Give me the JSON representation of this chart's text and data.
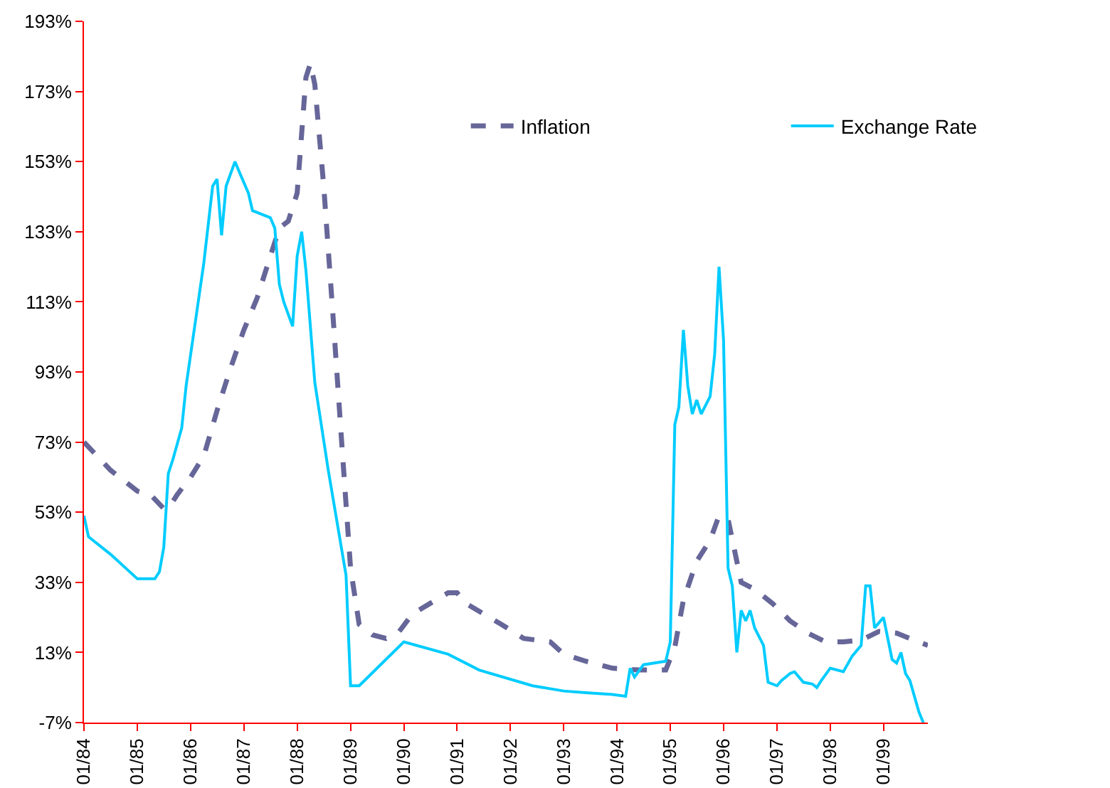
{
  "chart_data": {
    "type": "line",
    "legend": "top right",
    "grid": false,
    "ylim": [
      -7,
      193
    ],
    "yticks": [
      {
        "value": -7,
        "label": "-7%"
      },
      {
        "value": 13,
        "label": "13%"
      },
      {
        "value": 33,
        "label": "33%"
      },
      {
        "value": 53,
        "label": "53%"
      },
      {
        "value": 73,
        "label": "73%"
      },
      {
        "value": 93,
        "label": "93%"
      },
      {
        "value": 113,
        "label": "113%"
      },
      {
        "value": 133,
        "label": "133%"
      },
      {
        "value": 153,
        "label": "153%"
      },
      {
        "value": 173,
        "label": "173%"
      },
      {
        "value": 193,
        "label": "193%"
      }
    ],
    "xlim": [
      "1984-01",
      "1999-11"
    ],
    "xticks": [
      {
        "value": "1984-01",
        "label": "01/84"
      },
      {
        "value": "1985-01",
        "label": "01/85"
      },
      {
        "value": "1986-01",
        "label": "01/86"
      },
      {
        "value": "1987-01",
        "label": "01/87"
      },
      {
        "value": "1988-01",
        "label": "01/88"
      },
      {
        "value": "1989-01",
        "label": "01/89"
      },
      {
        "value": "1990-01",
        "label": "01/90"
      },
      {
        "value": "1991-01",
        "label": "01/91"
      },
      {
        "value": "1992-01",
        "label": "01/92"
      },
      {
        "value": "1993-01",
        "label": "01/93"
      },
      {
        "value": "1994-01",
        "label": "01/94"
      },
      {
        "value": "1995-01",
        "label": "01/95"
      },
      {
        "value": "1996-01",
        "label": "01/96"
      },
      {
        "value": "1997-01",
        "label": "01/97"
      },
      {
        "value": "1998-01",
        "label": "01/98"
      },
      {
        "value": "1999-01",
        "label": "01/99"
      }
    ],
    "series": [
      {
        "name": "Inflation",
        "color": "#666699",
        "line_style": "dashed",
        "x": [
          "1984-01",
          "1984-04",
          "1984-07",
          "1984-10",
          "1985-01",
          "1985-04",
          "1985-07",
          "1985-08",
          "1985-10",
          "1986-01",
          "1986-04",
          "1986-07",
          "1986-10",
          "1987-01",
          "1987-04",
          "1987-07",
          "1987-09",
          "1987-11",
          "1988-01",
          "1988-03",
          "1988-04",
          "1988-05",
          "1988-07",
          "1988-09",
          "1988-11",
          "1989-01",
          "1989-03",
          "1989-06",
          "1989-09",
          "1989-12",
          "1990-03",
          "1990-07",
          "1990-11",
          "1991-01",
          "1991-03",
          "1991-07",
          "1991-11",
          "1992-04",
          "1992-10",
          "1993-01",
          "1993-06",
          "1993-12",
          "1994-06",
          "1994-12",
          "1995-02",
          "1995-04",
          "1995-07",
          "1995-10",
          "1995-12",
          "1996-02",
          "1996-05",
          "1996-08",
          "1996-12",
          "1997-04",
          "1997-08",
          "1997-12",
          "1998-04",
          "1998-08",
          "1998-12",
          "1999-04",
          "1999-08",
          "1999-11"
        ],
        "values": [
          73,
          69,
          65,
          62,
          59,
          58,
          54,
          54,
          58,
          63,
          69,
          82,
          94,
          105,
          114,
          126,
          134,
          136,
          144,
          177,
          181,
          175,
          146,
          110,
          73,
          37,
          21,
          18,
          17,
          19,
          24,
          27,
          30,
          30,
          27,
          24,
          21,
          17,
          16,
          12.5,
          10.5,
          8.5,
          8,
          8,
          14.5,
          28,
          39,
          45,
          52,
          51,
          33,
          31,
          27,
          22,
          18.5,
          16,
          16,
          16.5,
          19,
          18.5,
          16.5,
          15
        ]
      },
      {
        "name": "Exchange Rate",
        "color": "#00ccff",
        "line_style": "solid",
        "x": [
          "1984-01",
          "1984-02",
          "1984-07",
          "1985-01",
          "1985-05",
          "1985-06",
          "1985-07",
          "1985-08",
          "1985-09",
          "1985-11",
          "1985-12",
          "1986-04",
          "1986-06",
          "1986-07",
          "1986-08",
          "1986-09",
          "1986-11",
          "1986-12",
          "1987-02",
          "1987-03",
          "1987-05",
          "1987-07",
          "1987-08",
          "1987-09",
          "1987-10",
          "1987-12",
          "1988-01",
          "1988-02",
          "1988-03",
          "1988-05",
          "1988-08",
          "1988-12",
          "1989-01",
          "1989-03",
          "1990-01",
          "1990-11",
          "1991-06",
          "1992-06",
          "1993-01",
          "1993-06",
          "1993-12",
          "1994-03",
          "1994-04",
          "1994-05",
          "1994-07",
          "1994-12",
          "1995-01",
          "1995-02",
          "1995-03",
          "1995-04",
          "1995-05",
          "1995-06",
          "1995-07",
          "1995-08",
          "1995-10",
          "1995-11",
          "1995-12",
          "1996-01",
          "1996-02",
          "1996-03",
          "1996-04",
          "1996-05",
          "1996-06",
          "1996-07",
          "1996-08",
          "1996-10",
          "1996-11",
          "1997-01",
          "1997-02",
          "1997-04",
          "1997-05",
          "1997-07",
          "1997-09",
          "1997-10",
          "1997-11",
          "1998-01",
          "1998-04",
          "1998-06",
          "1998-08",
          "1998-09",
          "1998-10",
          "1998-11",
          "1999-01",
          "1999-03",
          "1999-04",
          "1999-05",
          "1999-06",
          "1999-07",
          "1999-09",
          "1999-10"
        ],
        "values": [
          52,
          46,
          41,
          34,
          34,
          36,
          43,
          64,
          68,
          77,
          89,
          124,
          146,
          148,
          132,
          146,
          153,
          150,
          144,
          139,
          138,
          137,
          134,
          118,
          113,
          106,
          126,
          133,
          122,
          90,
          65,
          35,
          3.5,
          3.5,
          16,
          12.5,
          8,
          3.5,
          2,
          1.5,
          1,
          0.5,
          8.5,
          6,
          9.5,
          10.5,
          16,
          78,
          83,
          105,
          89,
          81,
          85,
          81,
          86,
          98,
          123,
          102,
          37,
          32,
          13,
          25,
          22,
          25,
          20,
          15,
          4.5,
          3.5,
          5,
          7,
          7.5,
          4.5,
          4,
          3,
          5,
          8.5,
          7.5,
          12,
          15,
          32,
          32,
          20,
          23,
          11,
          10,
          13,
          7,
          5,
          -4,
          -7
        ]
      }
    ]
  }
}
